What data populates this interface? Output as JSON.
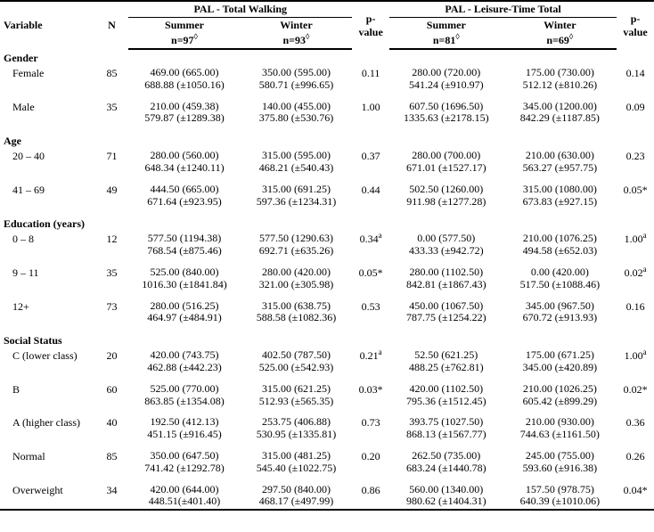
{
  "columns": {
    "variable": "Variable",
    "n": "N",
    "group_walking": "PAL - Total Walking",
    "group_leisure": "PAL - Leisure-Time Total",
    "summer": "Summer",
    "winter": "Winter",
    "n97": "n=97",
    "n93": "n=93",
    "n81": "n=81",
    "n69": "n=69",
    "p_top": "p-",
    "p_bot": "value",
    "diamond": "◊"
  },
  "sections": [
    {
      "title": "Gender",
      "rows": [
        {
          "label": "Female",
          "n": "85",
          "w_sum_a": "469.00 (665.00)",
          "w_sum_b": "688.88 (±1050.16)",
          "w_win_a": "350.00 (595.00)",
          "w_win_b": "580.71 (±996.65)",
          "p1": "0.11",
          "l_sum_a": "280.00  (720.00)",
          "l_sum_b": "541.24 (±910.97)",
          "l_win_a": "175.00 (730.00)",
          "l_win_b": "512.12 (±810.26)",
          "p2": "0.14"
        },
        {
          "label": "Male",
          "n": "35",
          "w_sum_a": "210.00 (459.38)",
          "w_sum_b": "579.87 (±1289.38)",
          "w_win_a": "140.00 (455.00)",
          "w_win_b": "375.80 (±530.76)",
          "p1": "1.00",
          "l_sum_a": "607.50 (1696.50)",
          "l_sum_b": "1335.63 (±2178.15)",
          "l_win_a": "345.00 (1200.00)",
          "l_win_b": "842.29 (±1187.85)",
          "p2": "0.09"
        }
      ]
    },
    {
      "title": "Age",
      "rows": [
        {
          "label": "20 – 40",
          "n": "71",
          "w_sum_a": "280.00 (560.00)",
          "w_sum_b": "648.34 (±1240.11)",
          "w_win_a": "315.00 (595.00)",
          "w_win_b": "468.21 (±540.43)",
          "p1": "0.37",
          "l_sum_a": "280.00 (700.00)",
          "l_sum_b": "671.01 (±1527.17)",
          "l_win_a": "210.00 (630.00)",
          "l_win_b": "563.27 (±957.75)",
          "p2": "0.23"
        },
        {
          "label": "41 – 69",
          "n": "49",
          "w_sum_a": "444.50 (665.00)",
          "w_sum_b": "671.64 (±923.95)",
          "w_win_a": "315.00 (691.25)",
          "w_win_b": "597.36 (±1234.31)",
          "p1": "0.44",
          "l_sum_a": "502.50 (1260.00)",
          "l_sum_b": "911.98 (±1277.28)",
          "l_win_a": "315.00 (1080.00)",
          "l_win_b": "673.83 (±927.15)",
          "p2": "0.05*"
        }
      ]
    },
    {
      "title": "Education (years)",
      "rows": [
        {
          "label": "0 – 8",
          "n": "12",
          "p1_sup": "a",
          "p2_sup": "a",
          "w_sum_a": "577.50 (1194.38)",
          "w_sum_b": "768.54 (±875.46)",
          "w_win_a": "577.50 (1290.63)",
          "w_win_b": "692.71 (±635.26)",
          "p1": "0.34",
          "l_sum_a": "0.00 (577.50)",
          "l_sum_b": "433.33 (±942.72)",
          "l_win_a": "210.00 (1076.25)",
          "l_win_b": "494.58 (±652.03)",
          "p2": "1.00"
        },
        {
          "label": "9 – 11",
          "n": "35",
          "p2_sup": "a",
          "w_sum_a": "525.00 (840.00)",
          "w_sum_b": "1016.30 (±1841.84)",
          "w_win_a": "280.00 (420.00)",
          "w_win_b": "321.00 (±305.98)",
          "p1": "0.05*",
          "l_sum_a": "280.00 (1102.50)",
          "l_sum_b": "842.81 (±1867.43)",
          "l_win_a": "0.00 (420.00)",
          "l_win_b": "517.50 (±1088.46)",
          "p2": "0.02"
        },
        {
          "label": "12+",
          "n": "73",
          "w_sum_a": "280.00 (516.25)",
          "w_sum_b": "464.97 (±484.91)",
          "w_win_a": "315.00 (638.75)",
          "w_win_b": "588.58 (±1082.36)",
          "p1": "0.53",
          "l_sum_a": "450.00 (1067.50)",
          "l_sum_b": "787.75 (±1254.22)",
          "l_win_a": "345.00 (967.50)",
          "l_win_b": "670.72 (±913.93)",
          "p2": "0.16"
        }
      ]
    },
    {
      "title": "Social Status",
      "rows": [
        {
          "label": "C (lower class)",
          "n": "20",
          "p1_sup": "a",
          "p2_sup": "a",
          "w_sum_a": "420.00 (743.75)",
          "w_sum_b": "462.88 (±442.23)",
          "w_win_a": "402.50 (787.50)",
          "w_win_b": "525.00 (±542.93)",
          "p1": "0.21",
          "l_sum_a": "52.50 (621.25)",
          "l_sum_b": "488.25 (±762.81)",
          "l_win_a": "175.00 (671.25)",
          "l_win_b": "345.00 (±420.89)",
          "p2": "1.00"
        },
        {
          "label": "B",
          "n": "60",
          "w_sum_a": "525.00 (770.00)",
          "w_sum_b": "863.85 (±1354.08)",
          "w_win_a": "315.00 (621.25)",
          "w_win_b": "512.93 (±565.35)",
          "p1": "0.03*",
          "l_sum_a": "420.00 (1102.50)",
          "l_sum_b": "795.36 (±1512.45)",
          "l_win_a": "210.00 (1026.25)",
          "l_win_b": "605.42 (±899.29)",
          "p2": "0.02*"
        },
        {
          "label": "A (higher class)",
          "n": "40",
          "w_sum_a": "192.50 (412.13)",
          "w_sum_b": "451.15 (±916.45)",
          "w_win_a": "253.75 (406.88)",
          "w_win_b": "530.95 (±1335.81)",
          "p1": "0.73",
          "l_sum_a": "393.75 (1027.50)",
          "l_sum_b": "868.13 (±1567.77)",
          "l_win_a": "210.00 (930.00)",
          "l_win_b": "744.63 (±1161.50)",
          "p2": "0.36"
        },
        {
          "label": "Normal",
          "n": "85",
          "w_sum_a": "350.00 (647.50)",
          "w_sum_b": "741.42 (±1292.78)",
          "w_win_a": "315.00 (481.25)",
          "w_win_b": "545.40 (±1022.75)",
          "p1": "0.20",
          "l_sum_a": "262.50 (735.00)",
          "l_sum_b": "683.24 (±1440.78)",
          "l_win_a": "245.00 (755.00)",
          "l_win_b": "593.60 (±916.38)",
          "p2": "0.26"
        },
        {
          "label": "Overweight",
          "n": "34",
          "w_sum_a": "420.00 (644.00)",
          "w_sum_b": "448.51(±401.40)",
          "w_win_a": "297.50 (840.00)",
          "w_win_b": "468.17 (±497.99)",
          "p1": "0.86",
          "l_sum_a": "560.00 (1340.00)",
          "l_sum_b": "980.62 (±1404.31)",
          "l_win_a": "157.50 (978.75)",
          "l_win_b": "640.39 (±1010.06)",
          "p2": "0.04*"
        }
      ]
    }
  ]
}
